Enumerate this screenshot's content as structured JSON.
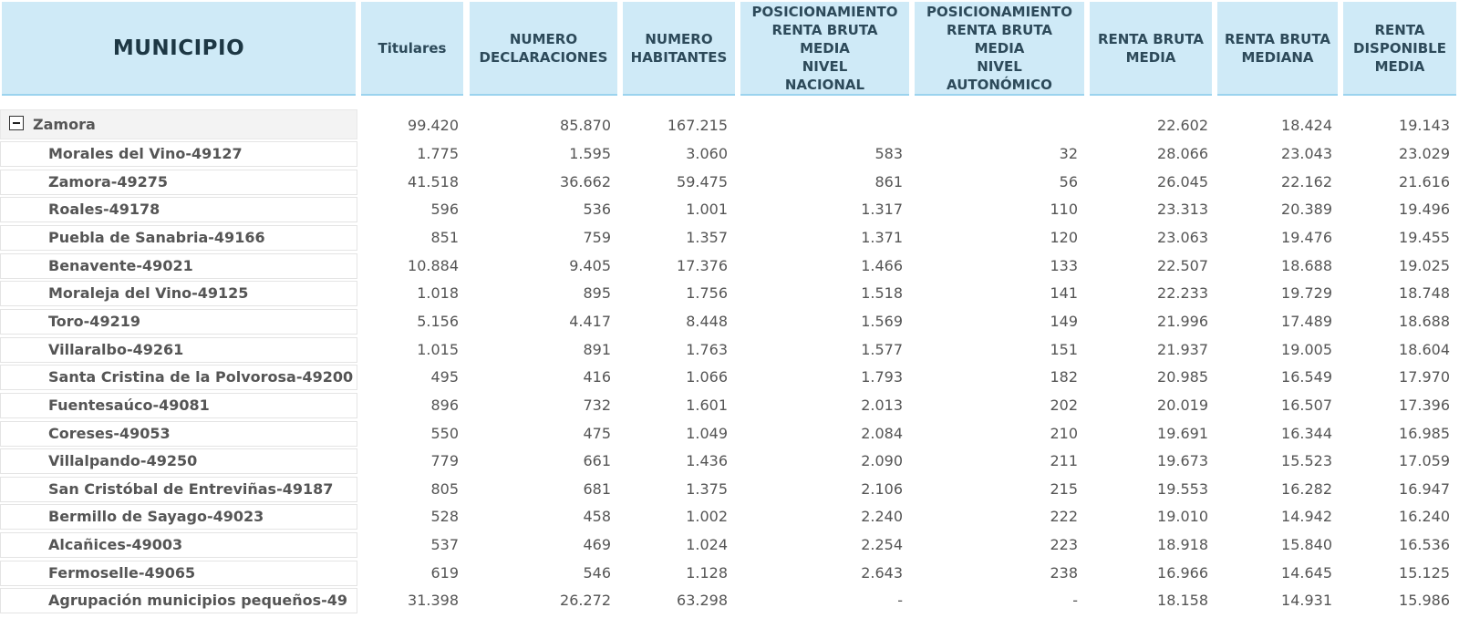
{
  "headers": {
    "municipio": "MUNICIPIO",
    "titulares": "Titulares",
    "num_declaraciones": "NUMERO\nDECLARACIONES",
    "num_habitantes": "NUMERO\nHABITANTES",
    "pos_nacional": "POSICIONAMIENTO\nRENTA BRUTA\nMEDIA\nNIVEL\nNACIONAL",
    "pos_autonomico": "POSICIONAMIENTO\nRENTA BRUTA\nMEDIA\nNIVEL\nAUTONÓMICO",
    "renta_bruta_media": "RENTA BRUTA\nMEDIA",
    "renta_bruta_mediana": "RENTA BRUTA\nMEDIANA",
    "renta_disponible_media": "RENTA\nDISPONIBLE\nMEDIA"
  },
  "rows": [
    {
      "name": "Zamora",
      "titulares": "99.420",
      "declaraciones": "85.870",
      "habitantes": "167.215",
      "pos_nacional": "",
      "pos_autonomico": "",
      "rbm": "22.602",
      "rbmed": "18.424",
      "rdm": "19.143"
    },
    {
      "name": "Morales del Vino-49127",
      "titulares": "1.775",
      "declaraciones": "1.595",
      "habitantes": "3.060",
      "pos_nacional": "583",
      "pos_autonomico": "32",
      "rbm": "28.066",
      "rbmed": "23.043",
      "rdm": "23.029"
    },
    {
      "name": "Zamora-49275",
      "titulares": "41.518",
      "declaraciones": "36.662",
      "habitantes": "59.475",
      "pos_nacional": "861",
      "pos_autonomico": "56",
      "rbm": "26.045",
      "rbmed": "22.162",
      "rdm": "21.616"
    },
    {
      "name": "Roales-49178",
      "titulares": "596",
      "declaraciones": "536",
      "habitantes": "1.001",
      "pos_nacional": "1.317",
      "pos_autonomico": "110",
      "rbm": "23.313",
      "rbmed": "20.389",
      "rdm": "19.496"
    },
    {
      "name": "Puebla de Sanabria-49166",
      "titulares": "851",
      "declaraciones": "759",
      "habitantes": "1.357",
      "pos_nacional": "1.371",
      "pos_autonomico": "120",
      "rbm": "23.063",
      "rbmed": "19.476",
      "rdm": "19.455"
    },
    {
      "name": "Benavente-49021",
      "titulares": "10.884",
      "declaraciones": "9.405",
      "habitantes": "17.376",
      "pos_nacional": "1.466",
      "pos_autonomico": "133",
      "rbm": "22.507",
      "rbmed": "18.688",
      "rdm": "19.025"
    },
    {
      "name": "Moraleja del Vino-49125",
      "titulares": "1.018",
      "declaraciones": "895",
      "habitantes": "1.756",
      "pos_nacional": "1.518",
      "pos_autonomico": "141",
      "rbm": "22.233",
      "rbmed": "19.729",
      "rdm": "18.748"
    },
    {
      "name": "Toro-49219",
      "titulares": "5.156",
      "declaraciones": "4.417",
      "habitantes": "8.448",
      "pos_nacional": "1.569",
      "pos_autonomico": "149",
      "rbm": "21.996",
      "rbmed": "17.489",
      "rdm": "18.688"
    },
    {
      "name": "Villaralbo-49261",
      "titulares": "1.015",
      "declaraciones": "891",
      "habitantes": "1.763",
      "pos_nacional": "1.577",
      "pos_autonomico": "151",
      "rbm": "21.937",
      "rbmed": "19.005",
      "rdm": "18.604"
    },
    {
      "name": "Santa Cristina de la Polvorosa-49200",
      "titulares": "495",
      "declaraciones": "416",
      "habitantes": "1.066",
      "pos_nacional": "1.793",
      "pos_autonomico": "182",
      "rbm": "20.985",
      "rbmed": "16.549",
      "rdm": "17.970"
    },
    {
      "name": "Fuentesaúco-49081",
      "titulares": "896",
      "declaraciones": "732",
      "habitantes": "1.601",
      "pos_nacional": "2.013",
      "pos_autonomico": "202",
      "rbm": "20.019",
      "rbmed": "16.507",
      "rdm": "17.396"
    },
    {
      "name": "Coreses-49053",
      "titulares": "550",
      "declaraciones": "475",
      "habitantes": "1.049",
      "pos_nacional": "2.084",
      "pos_autonomico": "210",
      "rbm": "19.691",
      "rbmed": "16.344",
      "rdm": "16.985"
    },
    {
      "name": "Villalpando-49250",
      "titulares": "779",
      "declaraciones": "661",
      "habitantes": "1.436",
      "pos_nacional": "2.090",
      "pos_autonomico": "211",
      "rbm": "19.673",
      "rbmed": "15.523",
      "rdm": "17.059"
    },
    {
      "name": "San Cristóbal de Entreviñas-49187",
      "titulares": "805",
      "declaraciones": "681",
      "habitantes": "1.375",
      "pos_nacional": "2.106",
      "pos_autonomico": "215",
      "rbm": "19.553",
      "rbmed": "16.282",
      "rdm": "16.947"
    },
    {
      "name": "Bermillo de Sayago-49023",
      "titulares": "528",
      "declaraciones": "458",
      "habitantes": "1.002",
      "pos_nacional": "2.240",
      "pos_autonomico": "222",
      "rbm": "19.010",
      "rbmed": "14.942",
      "rdm": "16.240"
    },
    {
      "name": "Alcañices-49003",
      "titulares": "537",
      "declaraciones": "469",
      "habitantes": "1.024",
      "pos_nacional": "2.254",
      "pos_autonomico": "223",
      "rbm": "18.918",
      "rbmed": "15.840",
      "rdm": "16.536"
    },
    {
      "name": "Fermoselle-49065",
      "titulares": "619",
      "declaraciones": "546",
      "habitantes": "1.128",
      "pos_nacional": "2.643",
      "pos_autonomico": "238",
      "rbm": "16.966",
      "rbmed": "14.645",
      "rdm": "15.125"
    },
    {
      "name": "Agrupación municipios pequeños-49",
      "titulares": "31.398",
      "declaraciones": "26.272",
      "habitantes": "63.298",
      "pos_nacional": "-",
      "pos_autonomico": "-",
      "rbm": "18.158",
      "rbmed": "14.931",
      "rdm": "15.986"
    }
  ]
}
